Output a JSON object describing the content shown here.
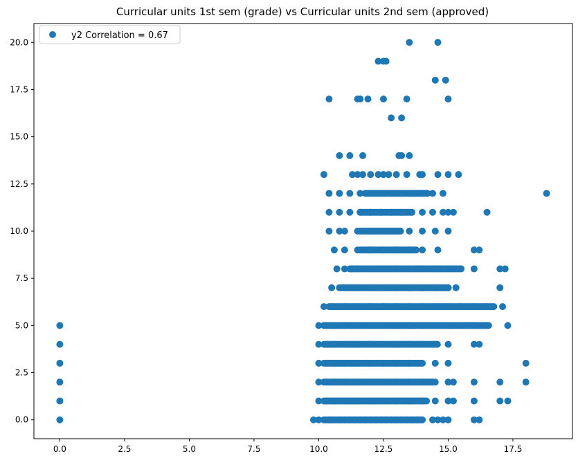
{
  "chart_data": {
    "type": "scatter",
    "title": "Curricular units 1st sem (grade) vs Curricular units 2nd sem (approved)",
    "xlabel": "",
    "ylabel": "",
    "xlim": [
      -1.0,
      19.8
    ],
    "ylim": [
      -1.0,
      21.0
    ],
    "xticks": [
      0.0,
      2.5,
      5.0,
      7.5,
      10.0,
      12.5,
      15.0,
      17.5
    ],
    "xtick_labels": [
      "0.0",
      "2.5",
      "5.0",
      "7.5",
      "10.0",
      "12.5",
      "15.0",
      "17.5"
    ],
    "yticks": [
      0.0,
      2.5,
      5.0,
      7.5,
      10.0,
      12.5,
      15.0,
      17.5,
      20.0
    ],
    "ytick_labels": [
      "0.0",
      "2.5",
      "5.0",
      "7.5",
      "10.0",
      "12.5",
      "15.0",
      "17.5",
      "20.0"
    ],
    "grid": false,
    "legend_position": "top-left",
    "color": "#1f77b4",
    "series": [
      {
        "name": "y2 Correlation = 0.67",
        "x": [
          0,
          0,
          0,
          0,
          0,
          0,
          9.8,
          10.0,
          10.4,
          10.5,
          10.8,
          11.0,
          11.2,
          11.4,
          11.6,
          11.8,
          12.0,
          12.2,
          12.4,
          12.6,
          12.8,
          13.0,
          13.2,
          13.4,
          13.6,
          13.8,
          14.0,
          14.4,
          14.6,
          14.8,
          15.0,
          16.0,
          16.2,
          10.0,
          10.3,
          10.6,
          11.0,
          11.5,
          12.0,
          12.5,
          13.0,
          13.5,
          14.0,
          14.5,
          15.0,
          15.2,
          16.0,
          17.0,
          17.3,
          10.0,
          10.3,
          10.6,
          11.0,
          11.5,
          12.0,
          12.5,
          13.0,
          13.5,
          14.0,
          14.5,
          15.0,
          15.2,
          16.0,
          17.0,
          18.0,
          10.0,
          10.3,
          10.6,
          11.0,
          11.5,
          12.0,
          12.5,
          13.0,
          13.5,
          14.0,
          14.5,
          15.0,
          18.0,
          10.0,
          10.3,
          10.6,
          11.0,
          11.5,
          12.0,
          12.5,
          13.0,
          13.5,
          14.0,
          14.5,
          15.0,
          16.0,
          16.2,
          10.0,
          10.3,
          10.6,
          11.0,
          11.5,
          12.0,
          12.5,
          13.0,
          13.5,
          14.0,
          14.5,
          15.0,
          15.5,
          16.0,
          16.5,
          17.3,
          10.2,
          10.5,
          11.0,
          11.5,
          12.0,
          12.5,
          13.0,
          13.5,
          14.0,
          14.5,
          15.0,
          15.5,
          16.0,
          16.5,
          17.1,
          10.5,
          11.0,
          11.5,
          12.0,
          12.5,
          13.0,
          13.5,
          14.0,
          14.5,
          15.0,
          15.3,
          17.0,
          10.7,
          11.0,
          11.5,
          12.0,
          12.5,
          13.0,
          13.5,
          14.0,
          14.5,
          15.0,
          15.5,
          16.0,
          17.0,
          17.2,
          10.6,
          11.0,
          11.5,
          12.0,
          12.5,
          13.0,
          13.5,
          14.0,
          14.6,
          16.0,
          16.2,
          10.4,
          10.8,
          11.0,
          11.5,
          12.0,
          12.5,
          13.0,
          13.5,
          14.0,
          14.5,
          15.0,
          10.4,
          10.8,
          11.2,
          11.6,
          12.0,
          12.4,
          12.8,
          13.2,
          13.6,
          14.0,
          14.4,
          14.8,
          15.0,
          15.2,
          16.5,
          10.4,
          10.8,
          11.2,
          11.6,
          12.0,
          12.4,
          12.8,
          13.2,
          13.6,
          14.0,
          14.4,
          14.8,
          18.8,
          10.2,
          11.3,
          11.5,
          11.7,
          12.0,
          12.3,
          12.5,
          12.7,
          13.0,
          13.4,
          13.9,
          14.0,
          14.6,
          15.0,
          15.4,
          10.8,
          11.2,
          11.7,
          13.1,
          13.2,
          13.5,
          12.8,
          13.2,
          10.4,
          11.5,
          11.6,
          11.9,
          12.5,
          13.4,
          15.0,
          14.5,
          14.9,
          12.3,
          12.5,
          12.6,
          13.5,
          14.6
        ],
        "y": [
          0,
          1,
          2,
          3,
          4,
          5,
          0,
          0,
          0,
          0,
          0,
          0,
          0,
          0,
          0,
          0,
          0,
          0,
          0,
          0,
          0,
          0,
          0,
          0,
          0,
          0,
          0,
          0,
          0,
          0,
          0,
          0,
          0,
          1,
          1,
          1,
          1,
          1,
          1,
          1,
          1,
          1,
          1,
          1,
          1,
          1,
          1,
          1,
          1,
          2,
          2,
          2,
          2,
          2,
          2,
          2,
          2,
          2,
          2,
          2,
          2,
          2,
          2,
          2,
          2,
          3,
          3,
          3,
          3,
          3,
          3,
          3,
          3,
          3,
          3,
          3,
          3,
          3,
          4,
          4,
          4,
          4,
          4,
          4,
          4,
          4,
          4,
          4,
          4,
          4,
          4,
          4,
          5,
          5,
          5,
          5,
          5,
          5,
          5,
          5,
          5,
          5,
          5,
          5,
          5,
          5,
          5,
          5,
          6,
          6,
          6,
          6,
          6,
          6,
          6,
          6,
          6,
          6,
          6,
          6,
          6,
          6,
          6,
          7,
          7,
          7,
          7,
          7,
          7,
          7,
          7,
          7,
          7,
          7,
          7,
          8,
          8,
          8,
          8,
          8,
          8,
          8,
          8,
          8,
          8,
          8,
          8,
          8,
          8,
          9,
          9,
          9,
          9,
          9,
          9,
          9,
          9,
          9,
          9,
          9,
          10,
          10,
          10,
          10,
          10,
          10,
          10,
          10,
          10,
          10,
          10,
          11,
          11,
          11,
          11,
          11,
          11,
          11,
          11,
          11,
          11,
          11,
          11,
          11,
          11,
          11,
          12,
          12,
          12,
          12,
          12,
          12,
          12,
          12,
          12,
          12,
          12,
          12,
          12,
          13,
          13,
          13,
          13,
          13,
          13,
          13,
          13,
          13,
          13,
          13,
          13,
          13,
          13,
          13,
          14,
          14,
          14,
          14,
          14,
          14,
          16,
          16,
          17,
          17,
          17,
          17,
          17,
          17,
          17,
          18,
          18,
          19,
          19,
          19,
          20,
          20
        ]
      }
    ],
    "row_runs": [
      {
        "y": 0,
        "from": 10.2,
        "to": 14.0
      },
      {
        "y": 1,
        "from": 10.2,
        "to": 14.2
      },
      {
        "y": 2,
        "from": 10.2,
        "to": 14.4
      },
      {
        "y": 3,
        "from": 10.2,
        "to": 14.0
      },
      {
        "y": 4,
        "from": 10.2,
        "to": 14.6
      },
      {
        "y": 5,
        "from": 10.2,
        "to": 16.6
      },
      {
        "y": 6,
        "from": 10.4,
        "to": 16.8
      },
      {
        "y": 7,
        "from": 10.8,
        "to": 15.0
      },
      {
        "y": 8,
        "from": 11.2,
        "to": 15.5
      },
      {
        "y": 9,
        "from": 11.6,
        "to": 13.8
      },
      {
        "y": 10,
        "from": 11.6,
        "to": 13.2
      },
      {
        "y": 11,
        "from": 11.6,
        "to": 13.6
      },
      {
        "y": 12,
        "from": 11.8,
        "to": 14.2
      }
    ]
  }
}
